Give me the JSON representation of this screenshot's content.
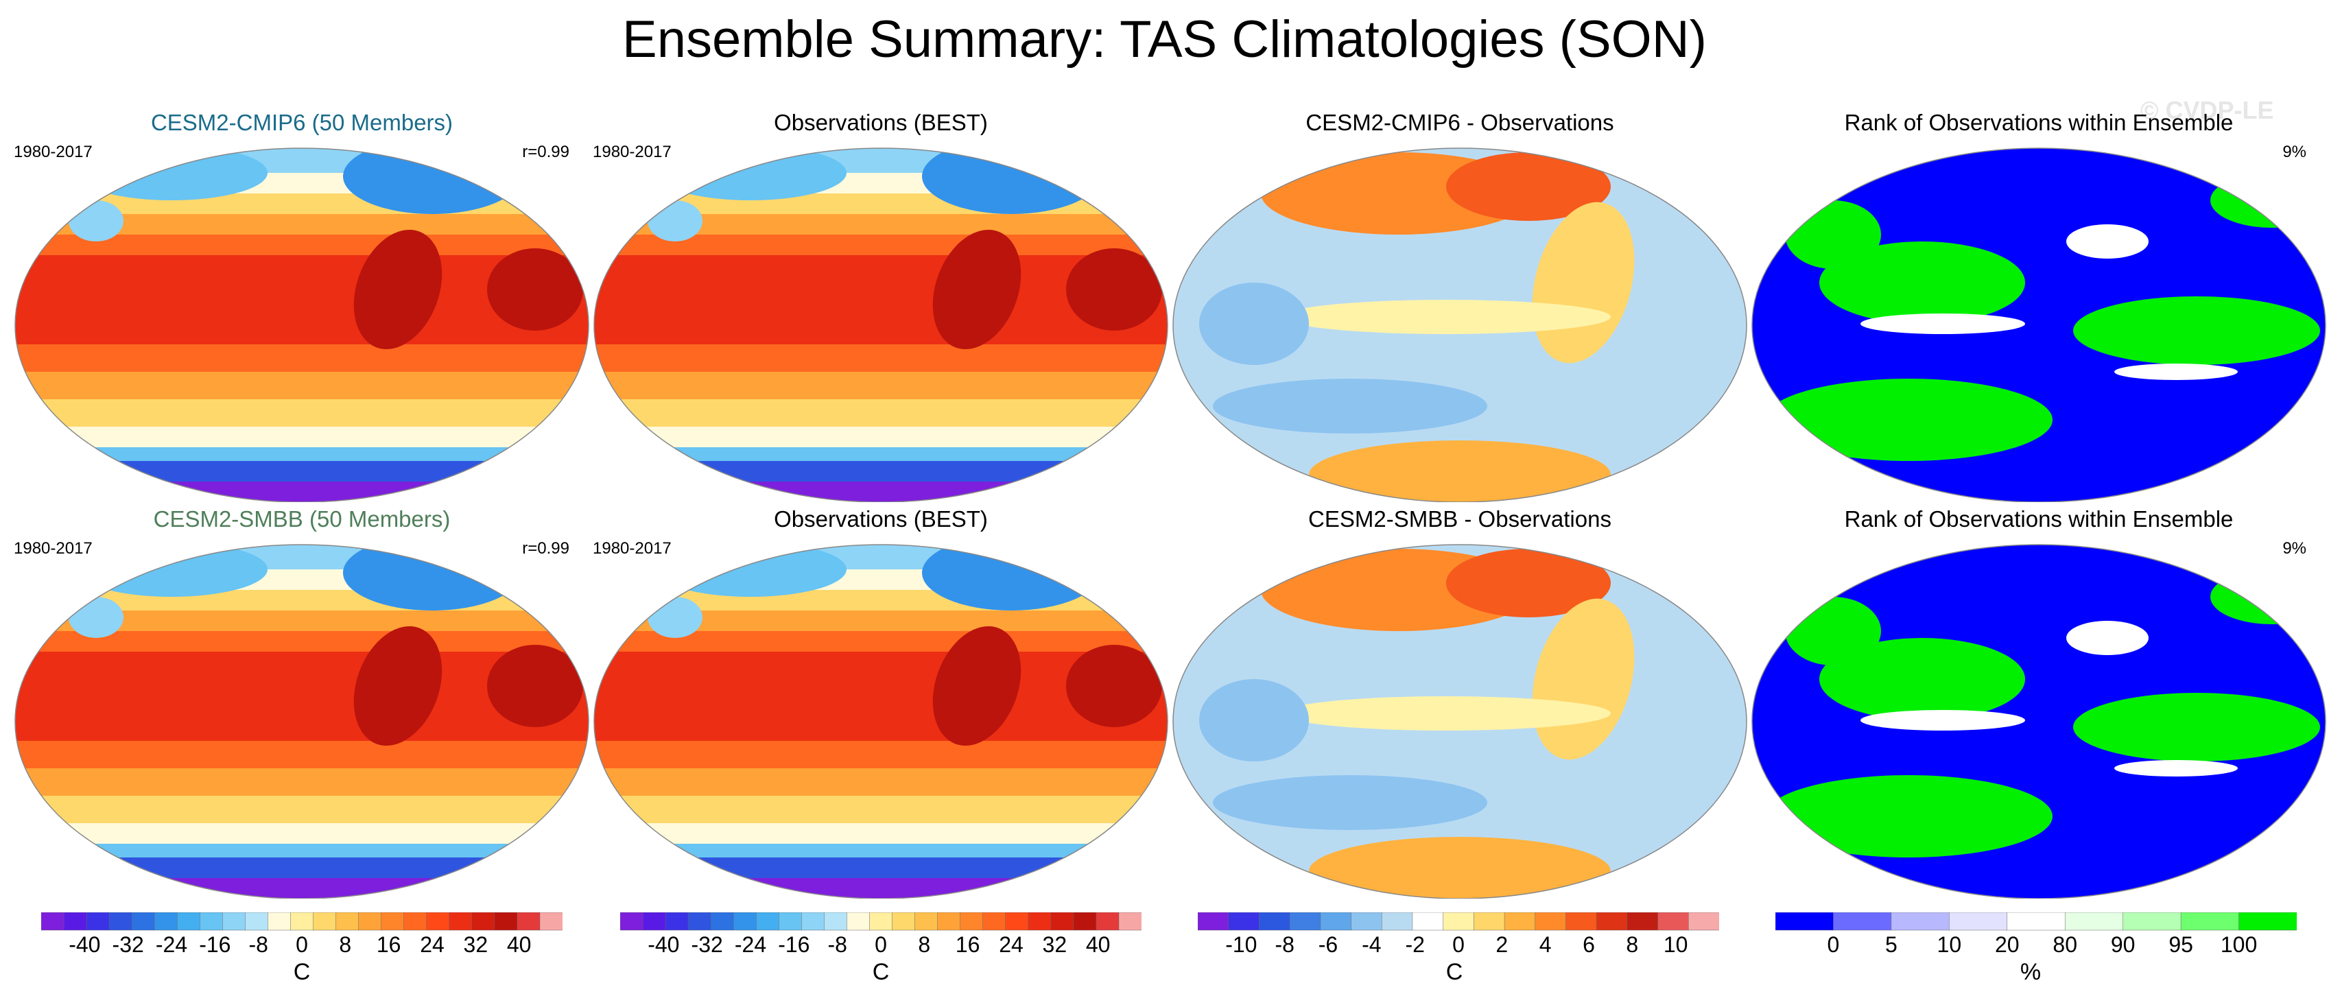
{
  "page": {
    "title": "Ensemble Summary: TAS Climatologies (SON)",
    "watermark": "© CVDP-LE"
  },
  "colors": {
    "temp_scale": [
      "#7d1fdc",
      "#5a1ae6",
      "#3b32e8",
      "#2f55e0",
      "#2c72e2",
      "#3393ea",
      "#43aef0",
      "#67c4f3",
      "#8ed4f6",
      "#b5e4f9",
      "#fffadc",
      "#ffef9e",
      "#ffd86b",
      "#ffbf4c",
      "#ffa238",
      "#ff852a",
      "#ff6820",
      "#ff4a18",
      "#ec2e14",
      "#d41e10",
      "#bb140d",
      "#e43a3a",
      "#f7a6a6"
    ],
    "diff_scale": [
      "#7d1fdc",
      "#3b32e8",
      "#2c58e0",
      "#3f7fe3",
      "#5fa6ea",
      "#8dc3ef",
      "#b9dbf2",
      "#ffffff",
      "#fff3a8",
      "#ffd66a",
      "#ffb23f",
      "#ff8a2a",
      "#f65a1d",
      "#de3415",
      "#c01e12",
      "#e85858",
      "#f7aaaa"
    ],
    "rank_scale": [
      "#0000ff",
      "#6b6bff",
      "#b8b8ff",
      "#e2e2ff",
      "#ffffff",
      "#e4ffe4",
      "#b4ffb4",
      "#6dff6d",
      "#00f000"
    ],
    "cmip6_title": "#1a6b8a",
    "smbb_title": "#4f7f5a"
  },
  "chart_data": [
    {
      "id": "r1c1",
      "type": "heatmap",
      "title": "CESM2-CMIP6 (50 Members)",
      "period": "1980-2017",
      "stat": "r=0.99",
      "variable": "TAS climatology",
      "units": "C"
    },
    {
      "id": "r1c2",
      "type": "heatmap",
      "title": "Observations (BEST)",
      "period": "1980-2017",
      "stat": "",
      "variable": "TAS climatology",
      "units": "C"
    },
    {
      "id": "r1c3",
      "type": "heatmap",
      "title": "CESM2-CMIP6 - Observations",
      "period": "",
      "stat": "",
      "variable": "TAS difference",
      "units": "C"
    },
    {
      "id": "r1c4",
      "type": "heatmap",
      "title": "Rank of Observations within Ensemble",
      "period": "",
      "stat": "9%",
      "variable": "rank",
      "units": "%"
    },
    {
      "id": "r2c1",
      "type": "heatmap",
      "title": "CESM2-SMBB (50 Members)",
      "period": "1980-2017",
      "stat": "r=0.99",
      "variable": "TAS climatology",
      "units": "C"
    },
    {
      "id": "r2c2",
      "type": "heatmap",
      "title": "Observations (BEST)",
      "period": "1980-2017",
      "stat": "",
      "variable": "TAS climatology",
      "units": "C"
    },
    {
      "id": "r2c3",
      "type": "heatmap",
      "title": "CESM2-SMBB - Observations",
      "period": "",
      "stat": "",
      "variable": "TAS difference",
      "units": "C"
    },
    {
      "id": "r2c4",
      "type": "heatmap",
      "title": "Rank of Observations within Ensemble",
      "period": "",
      "stat": "9%",
      "variable": "rank",
      "units": "%"
    }
  ],
  "colorbars": [
    {
      "id": "cb1",
      "units": "C",
      "ticks": [
        "-40",
        "-32",
        "-24",
        "-16",
        "-8",
        "0",
        "8",
        "16",
        "24",
        "32",
        "40"
      ]
    },
    {
      "id": "cb2",
      "units": "C",
      "ticks": [
        "-40",
        "-32",
        "-24",
        "-16",
        "-8",
        "0",
        "8",
        "16",
        "24",
        "32",
        "40"
      ]
    },
    {
      "id": "cb3",
      "units": "C",
      "ticks": [
        "-10",
        "-8",
        "-6",
        "-4",
        "-2",
        "0",
        "2",
        "4",
        "6",
        "8",
        "10"
      ]
    },
    {
      "id": "cb4",
      "units": "%",
      "ticks": [
        "0",
        "5",
        "10",
        "20",
        "80",
        "90",
        "95",
        "100"
      ]
    }
  ]
}
